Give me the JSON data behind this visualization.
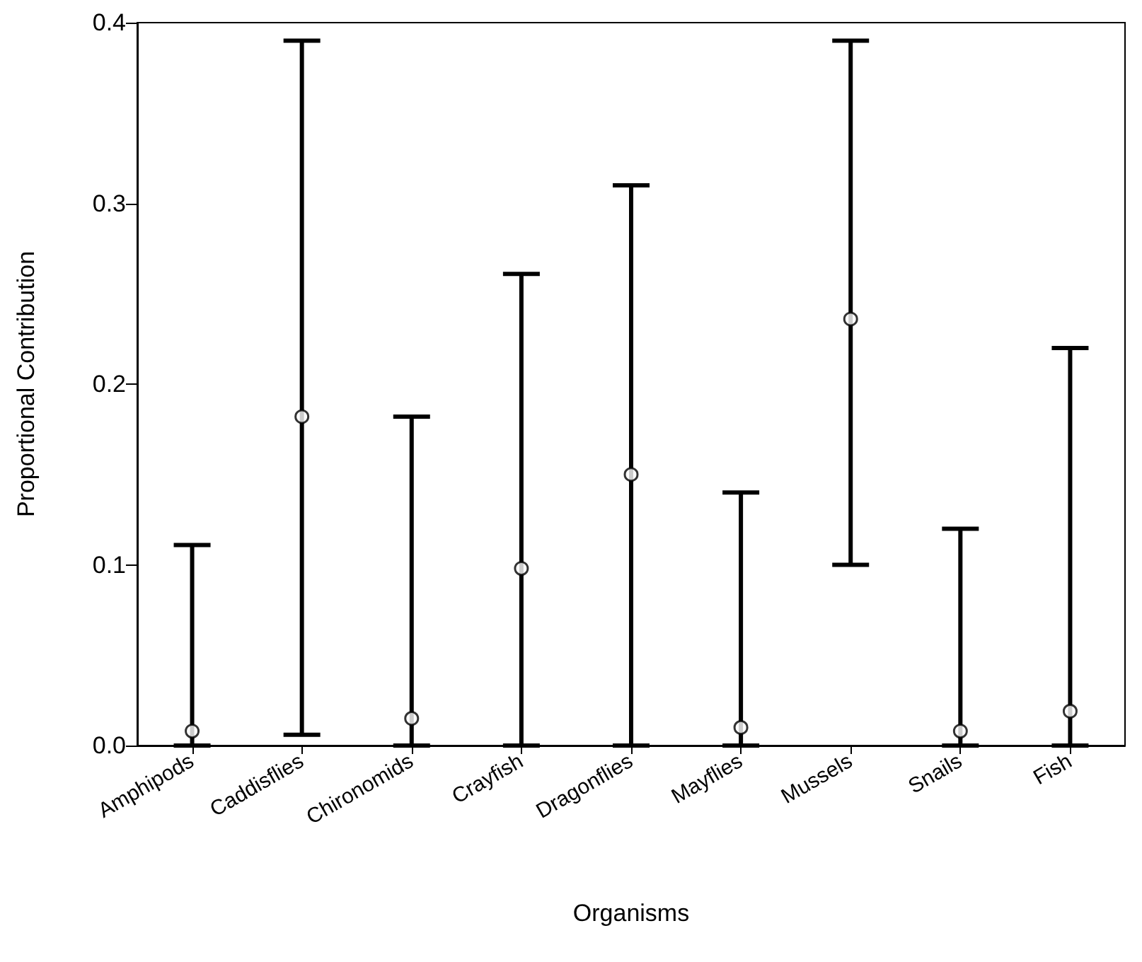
{
  "chart_data": {
    "type": "scatter",
    "xlabel": "Organisms",
    "ylabel": "Proportional Contribution",
    "categories": [
      "Amphipods",
      "Caddisflies",
      "Chironomids",
      "Crayfish",
      "Dragonflies",
      "Mayflies",
      "Mussels",
      "Snails",
      "Fish"
    ],
    "values": [
      0.008,
      0.182,
      0.015,
      0.098,
      0.15,
      0.01,
      0.236,
      0.008,
      0.019
    ],
    "errors": [
      [
        0,
        0.111
      ],
      [
        0.006,
        0.39
      ],
      [
        0,
        0.182
      ],
      [
        0,
        0.261
      ],
      [
        0,
        0.31
      ],
      [
        0,
        0.14
      ],
      [
        0.1,
        0.39
      ],
      [
        0,
        0.12
      ],
      [
        0,
        0.22
      ]
    ],
    "color": "#000000",
    "marker": "circle",
    "grid": false,
    "ylim": [
      0,
      0.4
    ],
    "yticks": [
      {
        "value": 0,
        "label": "0.0"
      },
      0.1,
      0.2,
      0.3,
      0.4
    ]
  }
}
